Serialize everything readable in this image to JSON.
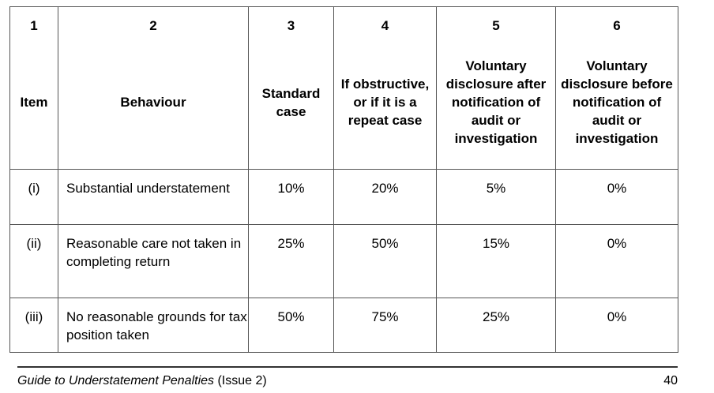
{
  "table": {
    "headers": [
      {
        "number": "1",
        "label": "Item"
      },
      {
        "number": "2",
        "label": "Behaviour"
      },
      {
        "number": "3",
        "label": "Standard case"
      },
      {
        "number": "4",
        "label": "If obstructive, or if it is a repeat case"
      },
      {
        "number": "5",
        "label": "Voluntary disclosure after notification of audit or investigation"
      },
      {
        "number": "6",
        "label": "Voluntary disclosure before notification of audit or investigation"
      }
    ],
    "rows": [
      {
        "item": "(i)",
        "behaviour": "Substantial understatement",
        "standard": "10%",
        "obstructive": "20%",
        "after": "5%",
        "before": "0%"
      },
      {
        "item": "(ii)",
        "behaviour": "Reasonable care not taken in completing return",
        "standard": "25%",
        "obstructive": "50%",
        "after": "15%",
        "before": "0%"
      },
      {
        "item": "(iii)",
        "behaviour": "No reasonable grounds for tax position taken",
        "standard": "50%",
        "obstructive": "75%",
        "after": "25%",
        "before": "0%"
      }
    ]
  },
  "footer": {
    "title": "Guide to Understatement Penalties",
    "issue": " (Issue 2)",
    "page": "40"
  }
}
